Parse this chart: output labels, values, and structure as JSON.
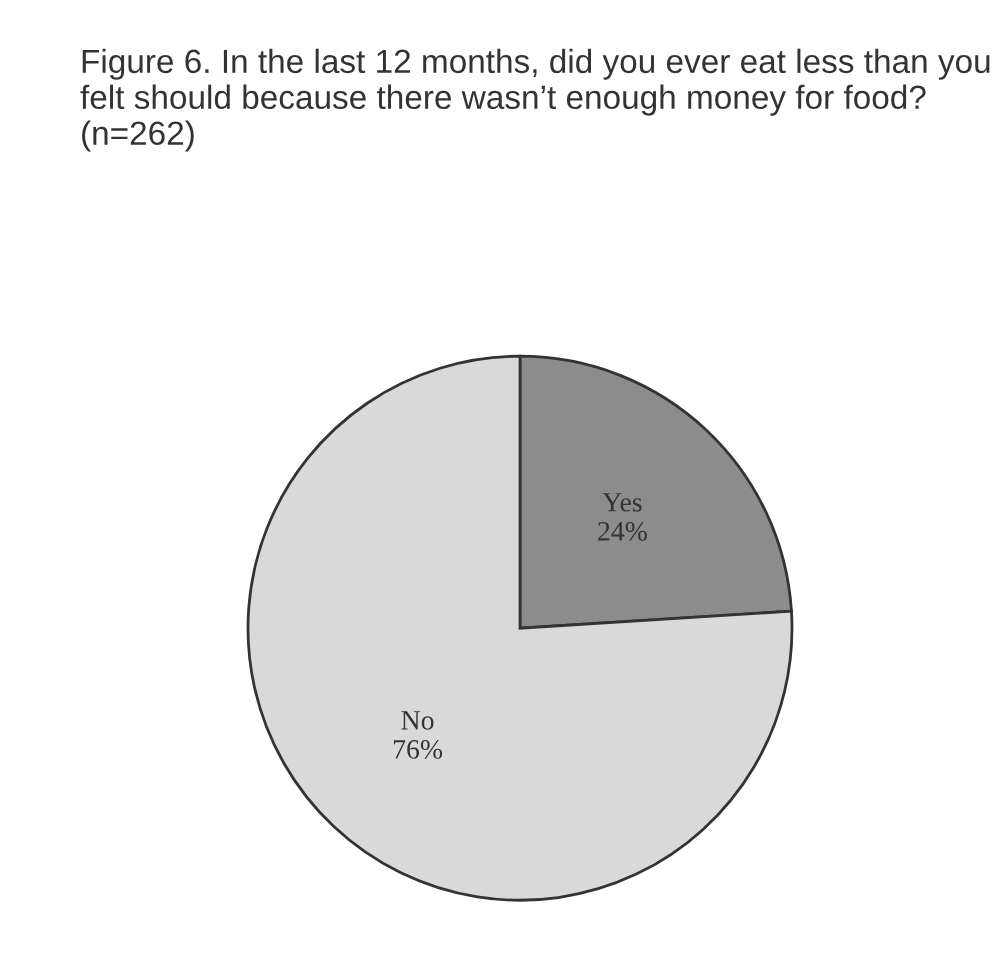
{
  "chart_data": {
    "type": "pie",
    "title": "Figure 6. In the last 12 months, did you ever eat less than you felt should because there wasn’t enough money for food? (n=262)",
    "categories": [
      "Yes",
      "No"
    ],
    "values": [
      24,
      76
    ],
    "colors": [
      "#8c8c8c",
      "#d9d9d9"
    ],
    "value_labels": [
      "24%",
      "76%"
    ],
    "legend": false
  }
}
